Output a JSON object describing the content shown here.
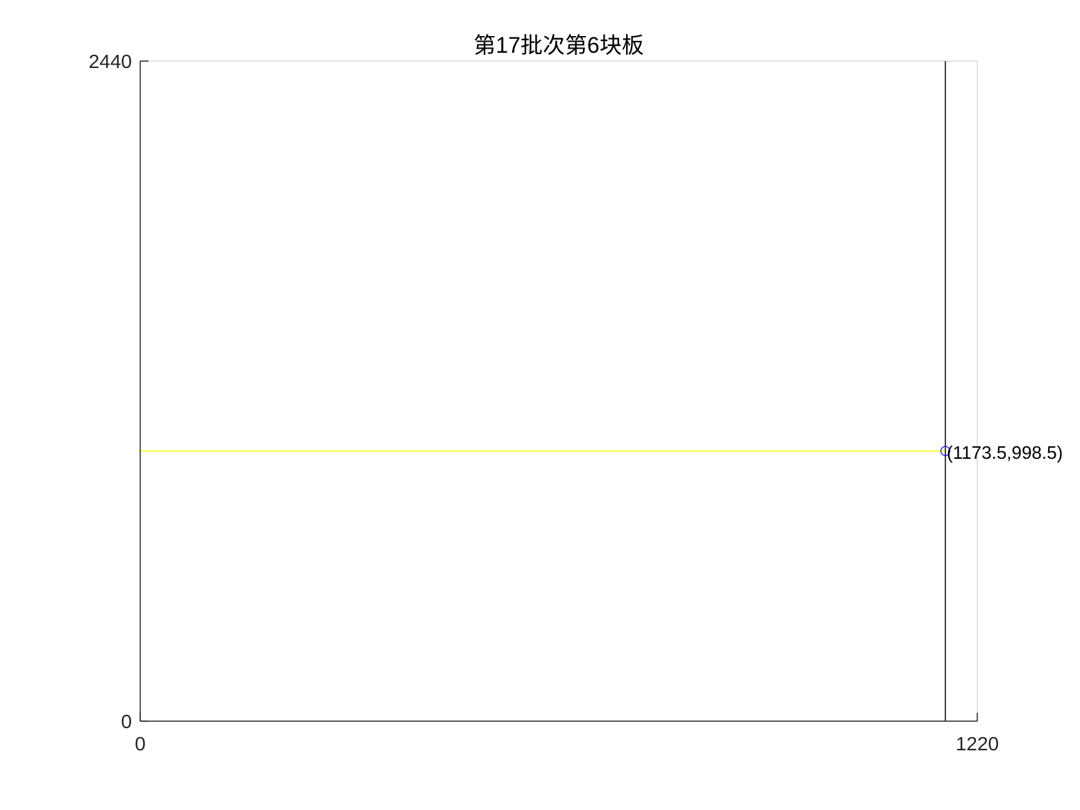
{
  "chart_data": {
    "type": "line",
    "title": "第17批次第6块板",
    "xlim": [
      0,
      1220
    ],
    "ylim": [
      0,
      2440
    ],
    "x_ticks": [
      "0",
      "1220"
    ],
    "y_ticks": [
      "0",
      "2440"
    ],
    "grid": false,
    "series": [
      {
        "kind": "segment",
        "color": "#ffff00",
        "points": [
          [
            0,
            998.5
          ],
          [
            1173.5,
            998.5
          ]
        ]
      },
      {
        "kind": "segment",
        "color": "#000000",
        "points": [
          [
            1173.5,
            0
          ],
          [
            1173.5,
            2440
          ]
        ]
      }
    ],
    "markers": [
      {
        "x": 1173.5,
        "y": 998.5,
        "shape": "circle",
        "color": "#0000ff"
      }
    ],
    "annotations": [
      {
        "x": 1173.5,
        "y": 998.5,
        "text": "(1173.5,998.5)"
      }
    ]
  }
}
